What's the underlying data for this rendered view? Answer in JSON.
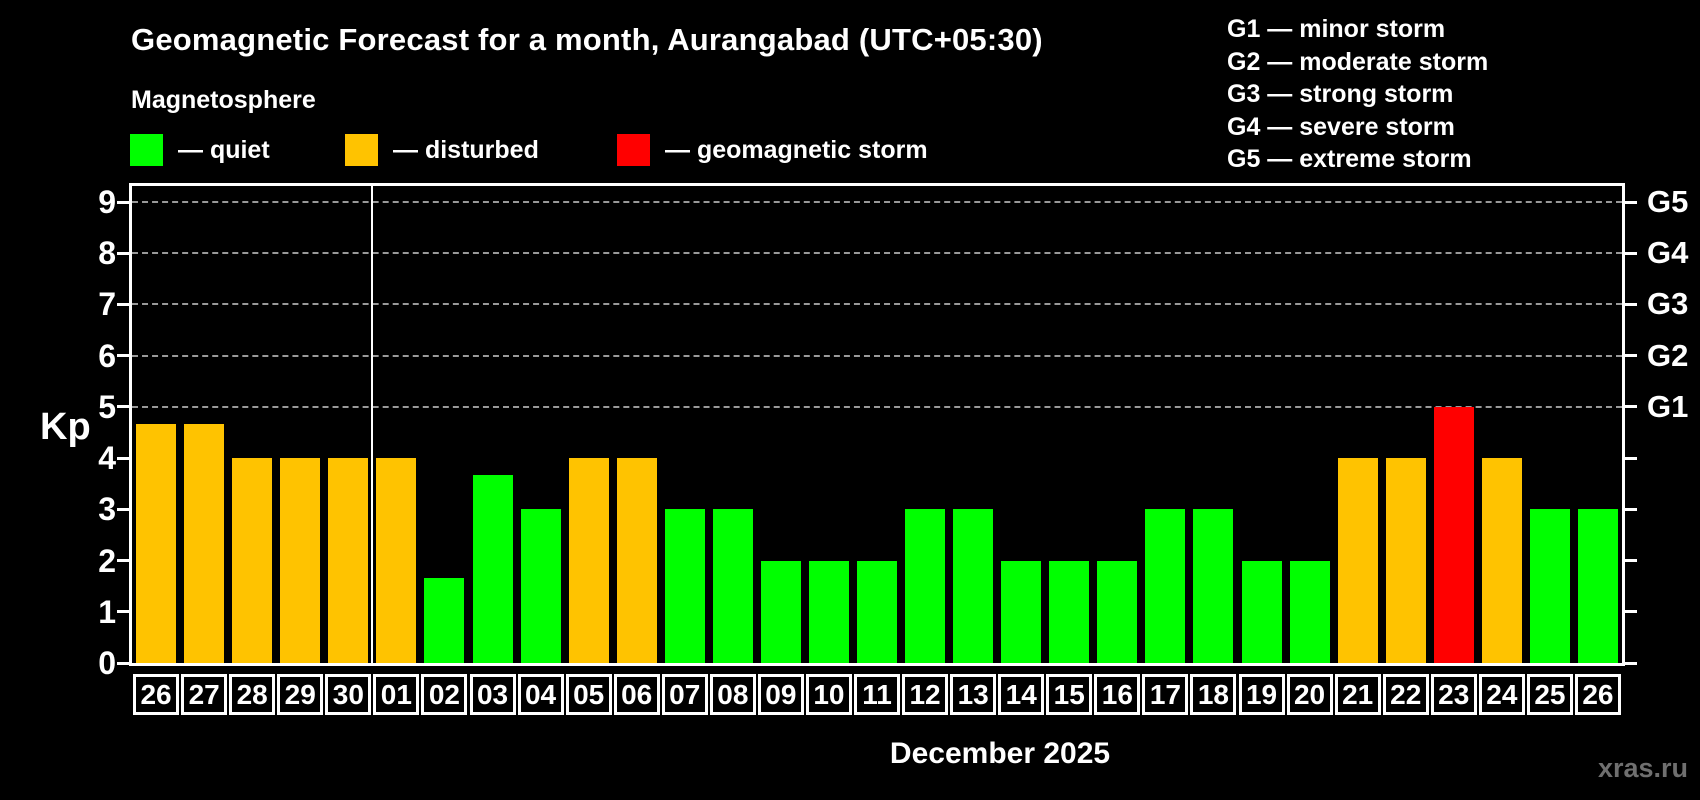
{
  "title": "Geomagnetic Forecast for a month, Aurangabad (UTC+05:30)",
  "subtitle": "Magnetosphere",
  "kp_axis_label": "Kp",
  "legend": {
    "quiet_label": "— quiet",
    "disturbed_label": "— disturbed",
    "storm_label": "— geomagnetic storm"
  },
  "g_legend": [
    "G1 — minor storm",
    "G2 — moderate storm",
    "G3 — strong storm",
    "G4 — severe storm",
    "G5 — extreme storm"
  ],
  "colors": {
    "quiet": "#00ff00",
    "disturbed": "#ffc300",
    "storm": "#ff0000",
    "background": "#000000",
    "text": "#ffffff",
    "grid": "#999999",
    "watermark": "#6f6f6f"
  },
  "footer": {
    "month_label": "December 2025",
    "watermark": "xras.ru"
  },
  "chart_data": {
    "type": "bar",
    "title": "Geomagnetic Forecast for a month, Aurangabad (UTC+05:30)",
    "ylabel": "Kp",
    "xlabel": "December 2025",
    "ylim": [
      0,
      9
    ],
    "yticks": [
      0,
      1,
      2,
      3,
      4,
      5,
      6,
      7,
      8,
      9
    ],
    "grid": "dashed horizontal gridlines at Kp 5-9 only",
    "legend_position": "top-left",
    "categories": [
      "26",
      "27",
      "28",
      "29",
      "30",
      "01",
      "02",
      "03",
      "04",
      "05",
      "06",
      "07",
      "08",
      "09",
      "10",
      "11",
      "12",
      "13",
      "14",
      "15",
      "16",
      "17",
      "18",
      "19",
      "20",
      "21",
      "22",
      "23",
      "24",
      "25",
      "26"
    ],
    "values": [
      4.67,
      4.67,
      4,
      4,
      4,
      4,
      1.67,
      3.67,
      3,
      4,
      4,
      3,
      3,
      2,
      2,
      2,
      3,
      3,
      2,
      2,
      2,
      3,
      3,
      2,
      2,
      4,
      4,
      5,
      4,
      3,
      3
    ],
    "statuses": [
      "disturbed",
      "disturbed",
      "disturbed",
      "disturbed",
      "disturbed",
      "disturbed",
      "quiet",
      "quiet",
      "quiet",
      "disturbed",
      "disturbed",
      "quiet",
      "quiet",
      "quiet",
      "quiet",
      "quiet",
      "quiet",
      "quiet",
      "quiet",
      "quiet",
      "quiet",
      "quiet",
      "quiet",
      "quiet",
      "quiet",
      "disturbed",
      "disturbed",
      "storm",
      "disturbed",
      "quiet",
      "quiet"
    ],
    "right_axis_labels": [
      {
        "kp": 5,
        "label": "G1"
      },
      {
        "kp": 6,
        "label": "G2"
      },
      {
        "kp": 7,
        "label": "G3"
      },
      {
        "kp": 8,
        "label": "G4"
      },
      {
        "kp": 9,
        "label": "G5"
      }
    ],
    "month_separator_after_index": 4,
    "previous_month_days": 5
  }
}
